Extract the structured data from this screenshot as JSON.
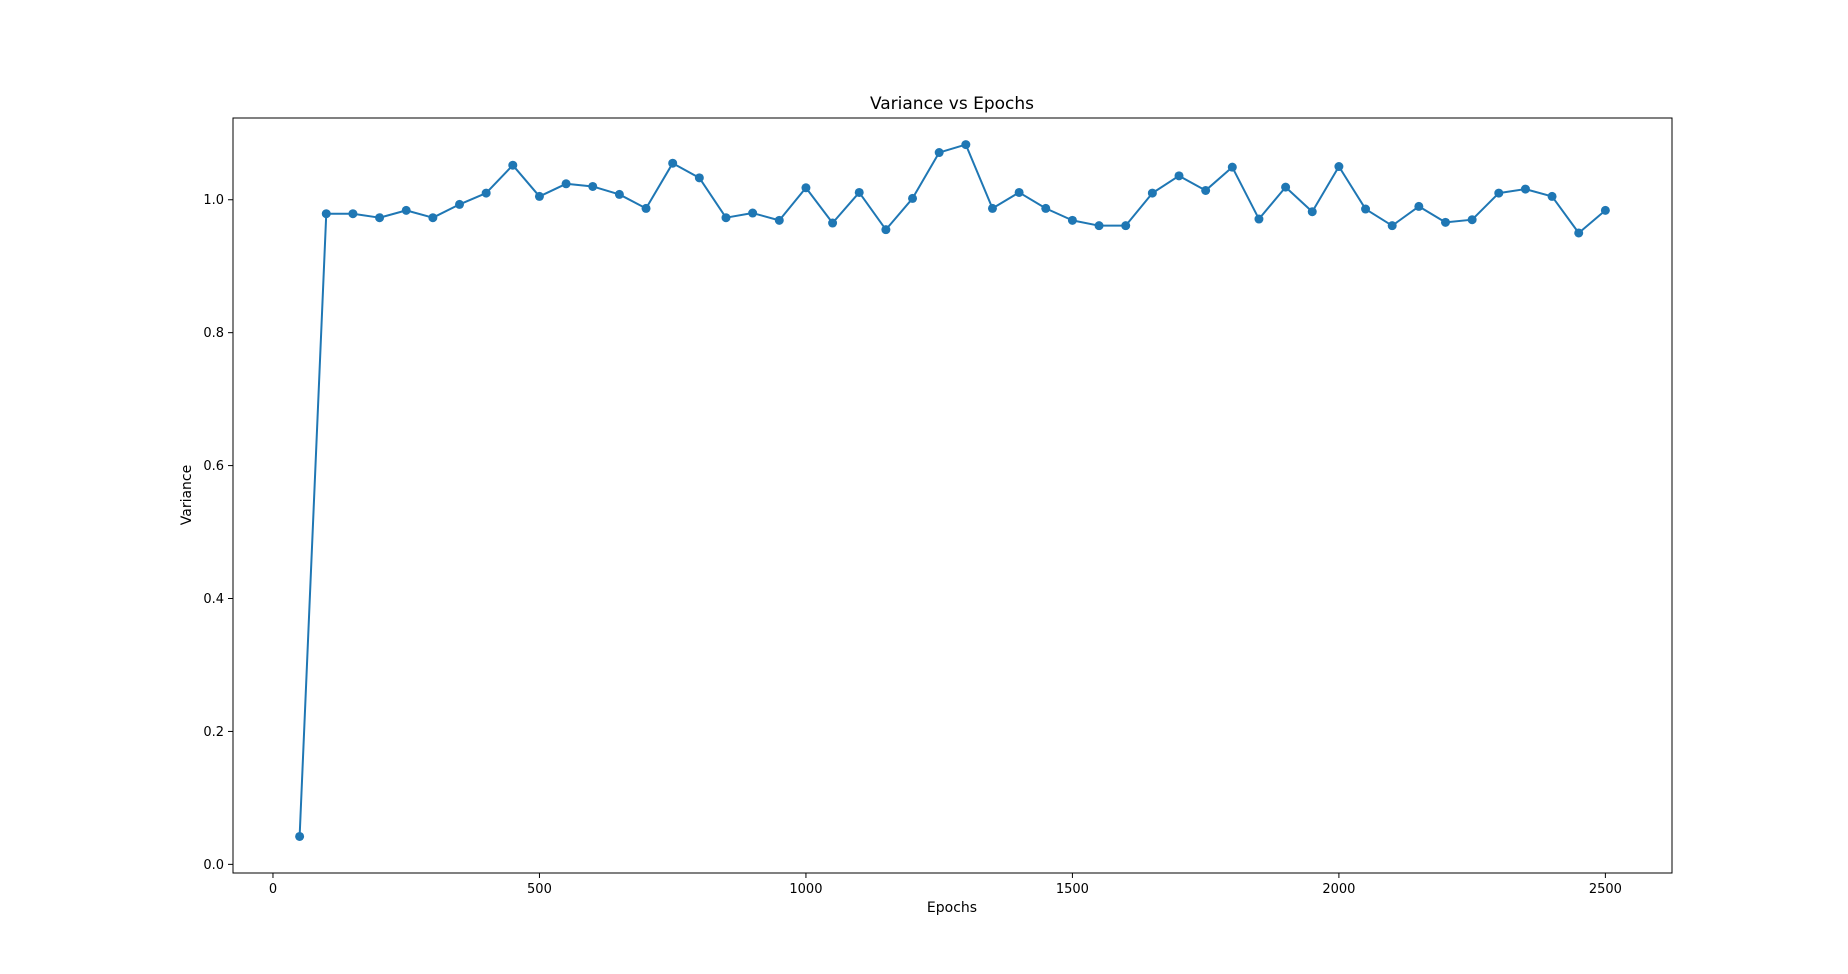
{
  "chart_data": {
    "type": "line",
    "title": "Variance vs Epochs",
    "xlabel": "Epochs",
    "ylabel": "Variance",
    "xlim": [
      -75,
      2625
    ],
    "ylim": [
      -0.013,
      1.123
    ],
    "xticks": [
      0,
      500,
      1000,
      1500,
      2000,
      2500
    ],
    "xtick_labels": [
      "0",
      "500",
      "1000",
      "1500",
      "2000",
      "2500"
    ],
    "yticks": [
      0.0,
      0.2,
      0.4,
      0.6,
      0.8,
      1.0
    ],
    "ytick_labels": [
      "0.0",
      "0.2",
      "0.4",
      "0.6",
      "0.8",
      "1.0"
    ],
    "grid": false,
    "legend": "none",
    "color": "#1f77b4",
    "marker": "circle",
    "series": [
      {
        "x": [
          50,
          100,
          150,
          200,
          250,
          300,
          350,
          400,
          450,
          500,
          550,
          600,
          650,
          700,
          750,
          800,
          850,
          900,
          950,
          1000,
          1050,
          1100,
          1150,
          1200,
          1250,
          1300,
          1350,
          1400,
          1450,
          1500,
          1550,
          1600,
          1650,
          1700,
          1750,
          1800,
          1850,
          1900,
          1950,
          2000,
          2050,
          2100,
          2150,
          2200,
          2250,
          2300,
          2350,
          2400,
          2450,
          2500
        ],
        "values": [
          0.042,
          0.979,
          0.979,
          0.973,
          0.984,
          0.973,
          0.993,
          1.01,
          1.052,
          1.005,
          1.024,
          1.02,
          1.008,
          0.987,
          1.055,
          1.033,
          0.973,
          0.98,
          0.969,
          1.018,
          0.965,
          1.011,
          0.955,
          1.002,
          1.071,
          1.083,
          0.987,
          1.011,
          0.987,
          0.969,
          0.961,
          0.961,
          1.01,
          1.036,
          1.014,
          1.049,
          0.971,
          1.019,
          0.982,
          1.05,
          0.986,
          0.961,
          0.99,
          0.966,
          0.97,
          1.01,
          1.016,
          1.005,
          0.95,
          0.984
        ]
      }
    ]
  }
}
